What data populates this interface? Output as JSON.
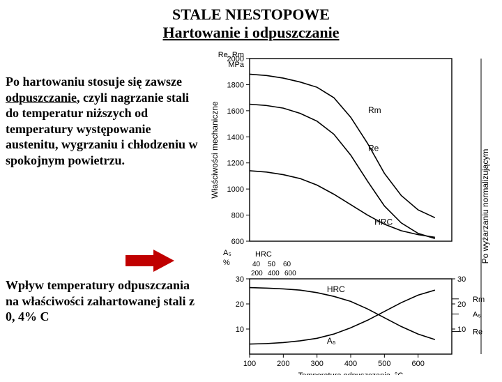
{
  "title": {
    "line1": "STALE NIESTOPOWE",
    "line2": "Hartowanie i odpuszczanie"
  },
  "paragraph": {
    "prefix": "Po hartowaniu stosuje się zawsze ",
    "underlined": "odpuszczanie",
    "suffix": ", czyli nagrzanie stali do temperatur niższych od temperatury występowanie austenitu, wygrzaniu i chłodzeniu w spokojnym powietrzu."
  },
  "caption": "Wpływ temperatury odpuszczania na właściwości zahartowanej stali  z 0, 4% C",
  "arrow": {
    "color": "#c00000",
    "width": 64,
    "height": 28
  },
  "chart": {
    "background_color": "#ffffff",
    "axis_color": "#000000",
    "xlabel": "Temperatura odpuszczania, °C",
    "ylabel_top": "Właściwości mechaniczne",
    "right_vertical_label": "Po wyżarzaniu normalizującym",
    "top_unit_labels": [
      "Re, Rm",
      "MPa"
    ],
    "mid_left_labels": [
      "A₅",
      "%",
      "HRC"
    ],
    "xlim": [
      100,
      700
    ],
    "xtick_step": 100,
    "xticks": [
      100,
      200,
      300,
      400,
      500,
      600
    ],
    "top_panel": {
      "ylim": [
        600,
        2000
      ],
      "yticks": [
        600,
        800,
        1000,
        1200,
        1400,
        1600,
        1800,
        2000
      ],
      "curves": [
        {
          "name": "Rm",
          "label_pos": "right",
          "points": [
            [
              100,
              1880
            ],
            [
              150,
              1870
            ],
            [
              200,
              1850
            ],
            [
              250,
              1820
            ],
            [
              300,
              1780
            ],
            [
              350,
              1700
            ],
            [
              400,
              1550
            ],
            [
              450,
              1350
            ],
            [
              500,
              1120
            ],
            [
              550,
              950
            ],
            [
              600,
              840
            ],
            [
              650,
              780
            ]
          ]
        },
        {
          "name": "Re",
          "label_pos": "right",
          "points": [
            [
              100,
              1650
            ],
            [
              150,
              1640
            ],
            [
              200,
              1620
            ],
            [
              250,
              1580
            ],
            [
              300,
              1520
            ],
            [
              350,
              1420
            ],
            [
              400,
              1260
            ],
            [
              450,
              1060
            ],
            [
              500,
              870
            ],
            [
              550,
              740
            ],
            [
              600,
              660
            ],
            [
              650,
              620
            ]
          ]
        },
        {
          "name": "HRC",
          "label_pos": "mid",
          "points": [
            [
              100,
              1140
            ],
            [
              150,
              1130
            ],
            [
              200,
              1110
            ],
            [
              250,
              1080
            ],
            [
              300,
              1030
            ],
            [
              350,
              960
            ],
            [
              400,
              880
            ],
            [
              450,
              800
            ],
            [
              500,
              730
            ],
            [
              550,
              680
            ],
            [
              600,
              650
            ],
            [
              650,
              630
            ]
          ]
        }
      ]
    },
    "bottom_panel": {
      "left_axis": {
        "label": "A5_pct",
        "lim": [
          0,
          30
        ],
        "ticks": [
          10,
          20,
          30
        ]
      },
      "right_ticks_a5": [
        10,
        20,
        30
      ],
      "hrc_ticks": [
        40,
        50,
        60
      ],
      "hrc_bottom_ticks": [
        200,
        400,
        600
      ],
      "curves": [
        {
          "name": "HRC",
          "points": [
            [
              100,
              26.5
            ],
            [
              150,
              26.3
            ],
            [
              200,
              26
            ],
            [
              250,
              25.5
            ],
            [
              300,
              24.5
            ],
            [
              350,
              23
            ],
            [
              400,
              21
            ],
            [
              450,
              18
            ],
            [
              500,
              14.5
            ],
            [
              550,
              11
            ],
            [
              600,
              8
            ],
            [
              650,
              5.8
            ]
          ]
        },
        {
          "name": "A5",
          "points": [
            [
              100,
              4
            ],
            [
              150,
              4.2
            ],
            [
              200,
              4.6
            ],
            [
              250,
              5.3
            ],
            [
              300,
              6.3
            ],
            [
              350,
              8
            ],
            [
              400,
              10.5
            ],
            [
              450,
              13.5
            ],
            [
              500,
              17
            ],
            [
              550,
              20.5
            ],
            [
              600,
              23.5
            ],
            [
              650,
              25.5
            ]
          ]
        }
      ],
      "right_end_labels": [
        "Rm",
        "A₅",
        "Re"
      ]
    },
    "line_width": 1.6,
    "font_family": "Arial",
    "tick_fontsize": 11
  }
}
